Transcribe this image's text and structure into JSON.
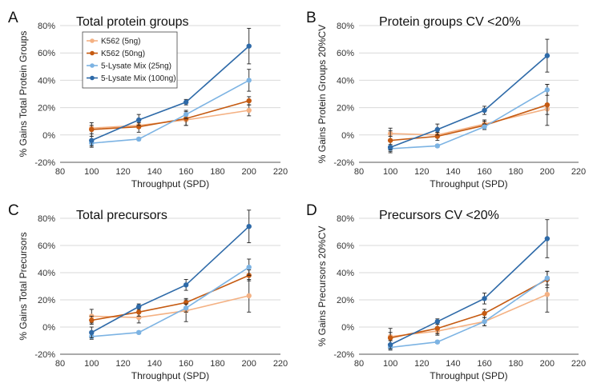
{
  "colors": {
    "k562_5": "#f4b183",
    "k562_50": "#c55a11",
    "lysate_25": "#7cb3e3",
    "lysate_100": "#2e6aa8",
    "grid": "#d9d9d9",
    "axis": "#555555",
    "errorbar": "#222222"
  },
  "chart_data": [
    {
      "panel": "A",
      "type": "line",
      "title": "Total protein groups",
      "xlabel": "Throughput (SPD)",
      "ylabel": "% Gains Total Protein Groups",
      "x": [
        100,
        130,
        160,
        200
      ],
      "xlim": [
        80,
        220
      ],
      "xticks": [
        80,
        100,
        120,
        140,
        160,
        180,
        200,
        220
      ],
      "ylim": [
        -0.2,
        0.8
      ],
      "yticks": [
        "-20%",
        "0%",
        "20%",
        "40%",
        "60%",
        "80%"
      ],
      "grid": true,
      "legend": "top-left",
      "series": [
        {
          "name": "K562 (5ng)",
          "values": [
            0.05,
            0.07,
            0.11,
            0.18
          ],
          "errors": [
            0.02,
            0.02,
            0.04,
            0.04
          ]
        },
        {
          "name": "K562 (50ng)",
          "values": [
            0.04,
            0.06,
            0.12,
            0.25
          ],
          "errors": [
            0.05,
            0.04,
            0.05,
            0.03
          ]
        },
        {
          "name": "5-Lysate Mix (25ng)",
          "values": [
            -0.06,
            -0.03,
            0.15,
            0.4
          ],
          "errors": [
            0.02,
            0.01,
            0.03,
            0.08
          ]
        },
        {
          "name": "5-Lysate Mix (100ng)",
          "values": [
            -0.04,
            0.11,
            0.24,
            0.65
          ],
          "errors": [
            0.05,
            0.04,
            0.02,
            0.13
          ]
        }
      ]
    },
    {
      "panel": "B",
      "type": "line",
      "title": "Protein groups CV <20%",
      "xlabel": "Throughput (SPD)",
      "ylabel": "% Gains Protein Groups 20%CV",
      "x": [
        100,
        130,
        160,
        200
      ],
      "xlim": [
        80,
        220
      ],
      "xticks": [
        80,
        100,
        120,
        140,
        160,
        180,
        200,
        220
      ],
      "ylim": [
        -0.2,
        0.8
      ],
      "yticks": [
        "-20%",
        "0%",
        "20%",
        "40%",
        "60%",
        "80%"
      ],
      "grid": true,
      "series": [
        {
          "name": "K562 (5ng)",
          "values": [
            0.01,
            0.0,
            0.08,
            0.19
          ],
          "errors": [
            0.02,
            0.02,
            0.03,
            0.04
          ]
        },
        {
          "name": "K562 (50ng)",
          "values": [
            -0.04,
            -0.01,
            0.07,
            0.22
          ],
          "errors": [
            0.09,
            0.03,
            0.03,
            0.15
          ]
        },
        {
          "name": "5-Lysate Mix (25ng)",
          "values": [
            -0.1,
            -0.08,
            0.06,
            0.33
          ],
          "errors": [
            0.02,
            0.01,
            0.02,
            0.04
          ]
        },
        {
          "name": "5-Lysate Mix (100ng)",
          "values": [
            -0.09,
            0.04,
            0.18,
            0.58
          ],
          "errors": [
            0.02,
            0.04,
            0.03,
            0.12
          ]
        }
      ]
    },
    {
      "panel": "C",
      "type": "line",
      "title": "Total precursors",
      "xlabel": "Throughput (SPD)",
      "ylabel": "% Gains Total Precursors",
      "x": [
        100,
        130,
        160,
        200
      ],
      "xlim": [
        80,
        220
      ],
      "xticks": [
        80,
        100,
        120,
        140,
        160,
        180,
        200,
        220
      ],
      "ylim": [
        -0.2,
        0.8
      ],
      "yticks": [
        "-20%",
        "0%",
        "20%",
        "40%",
        "60%",
        "80%"
      ],
      "grid": true,
      "series": [
        {
          "name": "K562 (5ng)",
          "values": [
            0.08,
            0.07,
            0.12,
            0.23
          ],
          "errors": [
            0.05,
            0.04,
            0.08,
            0.12
          ]
        },
        {
          "name": "K562 (50ng)",
          "values": [
            0.05,
            0.11,
            0.18,
            0.38
          ],
          "errors": [
            0.03,
            0.03,
            0.03,
            0.04
          ]
        },
        {
          "name": "5-Lysate Mix (25ng)",
          "values": [
            -0.07,
            -0.04,
            0.14,
            0.44
          ],
          "errors": [
            0.02,
            0.01,
            0.03,
            0.06
          ]
        },
        {
          "name": "5-Lysate Mix (100ng)",
          "values": [
            -0.04,
            0.15,
            0.31,
            0.74
          ],
          "errors": [
            0.04,
            0.02,
            0.04,
            0.12
          ]
        }
      ]
    },
    {
      "panel": "D",
      "type": "line",
      "title": "Precursors CV <20%",
      "xlabel": "Throughput (SPD)",
      "ylabel": "% Gains Precursors 20%CV",
      "x": [
        100,
        130,
        160,
        200
      ],
      "xlim": [
        80,
        220
      ],
      "xticks": [
        80,
        100,
        120,
        140,
        160,
        180,
        200,
        220
      ],
      "ylim": [
        -0.2,
        0.8
      ],
      "yticks": [
        "-20%",
        "0%",
        "20%",
        "40%",
        "60%",
        "80%"
      ],
      "grid": true,
      "series": [
        {
          "name": "K562 (5ng)",
          "values": [
            -0.07,
            -0.03,
            0.04,
            0.24
          ],
          "errors": [
            0.03,
            0.03,
            0.03,
            0.13
          ]
        },
        {
          "name": "K562 (50ng)",
          "values": [
            -0.08,
            -0.01,
            0.1,
            0.35
          ],
          "errors": [
            0.07,
            0.04,
            0.03,
            0.06
          ]
        },
        {
          "name": "5-Lysate Mix (25ng)",
          "values": [
            -0.15,
            -0.11,
            0.04,
            0.36
          ],
          "errors": [
            0.02,
            0.01,
            0.03,
            0.05
          ]
        },
        {
          "name": "5-Lysate Mix (100ng)",
          "values": [
            -0.13,
            0.04,
            0.21,
            0.65
          ],
          "errors": [
            0.03,
            0.02,
            0.04,
            0.14
          ]
        }
      ]
    }
  ]
}
